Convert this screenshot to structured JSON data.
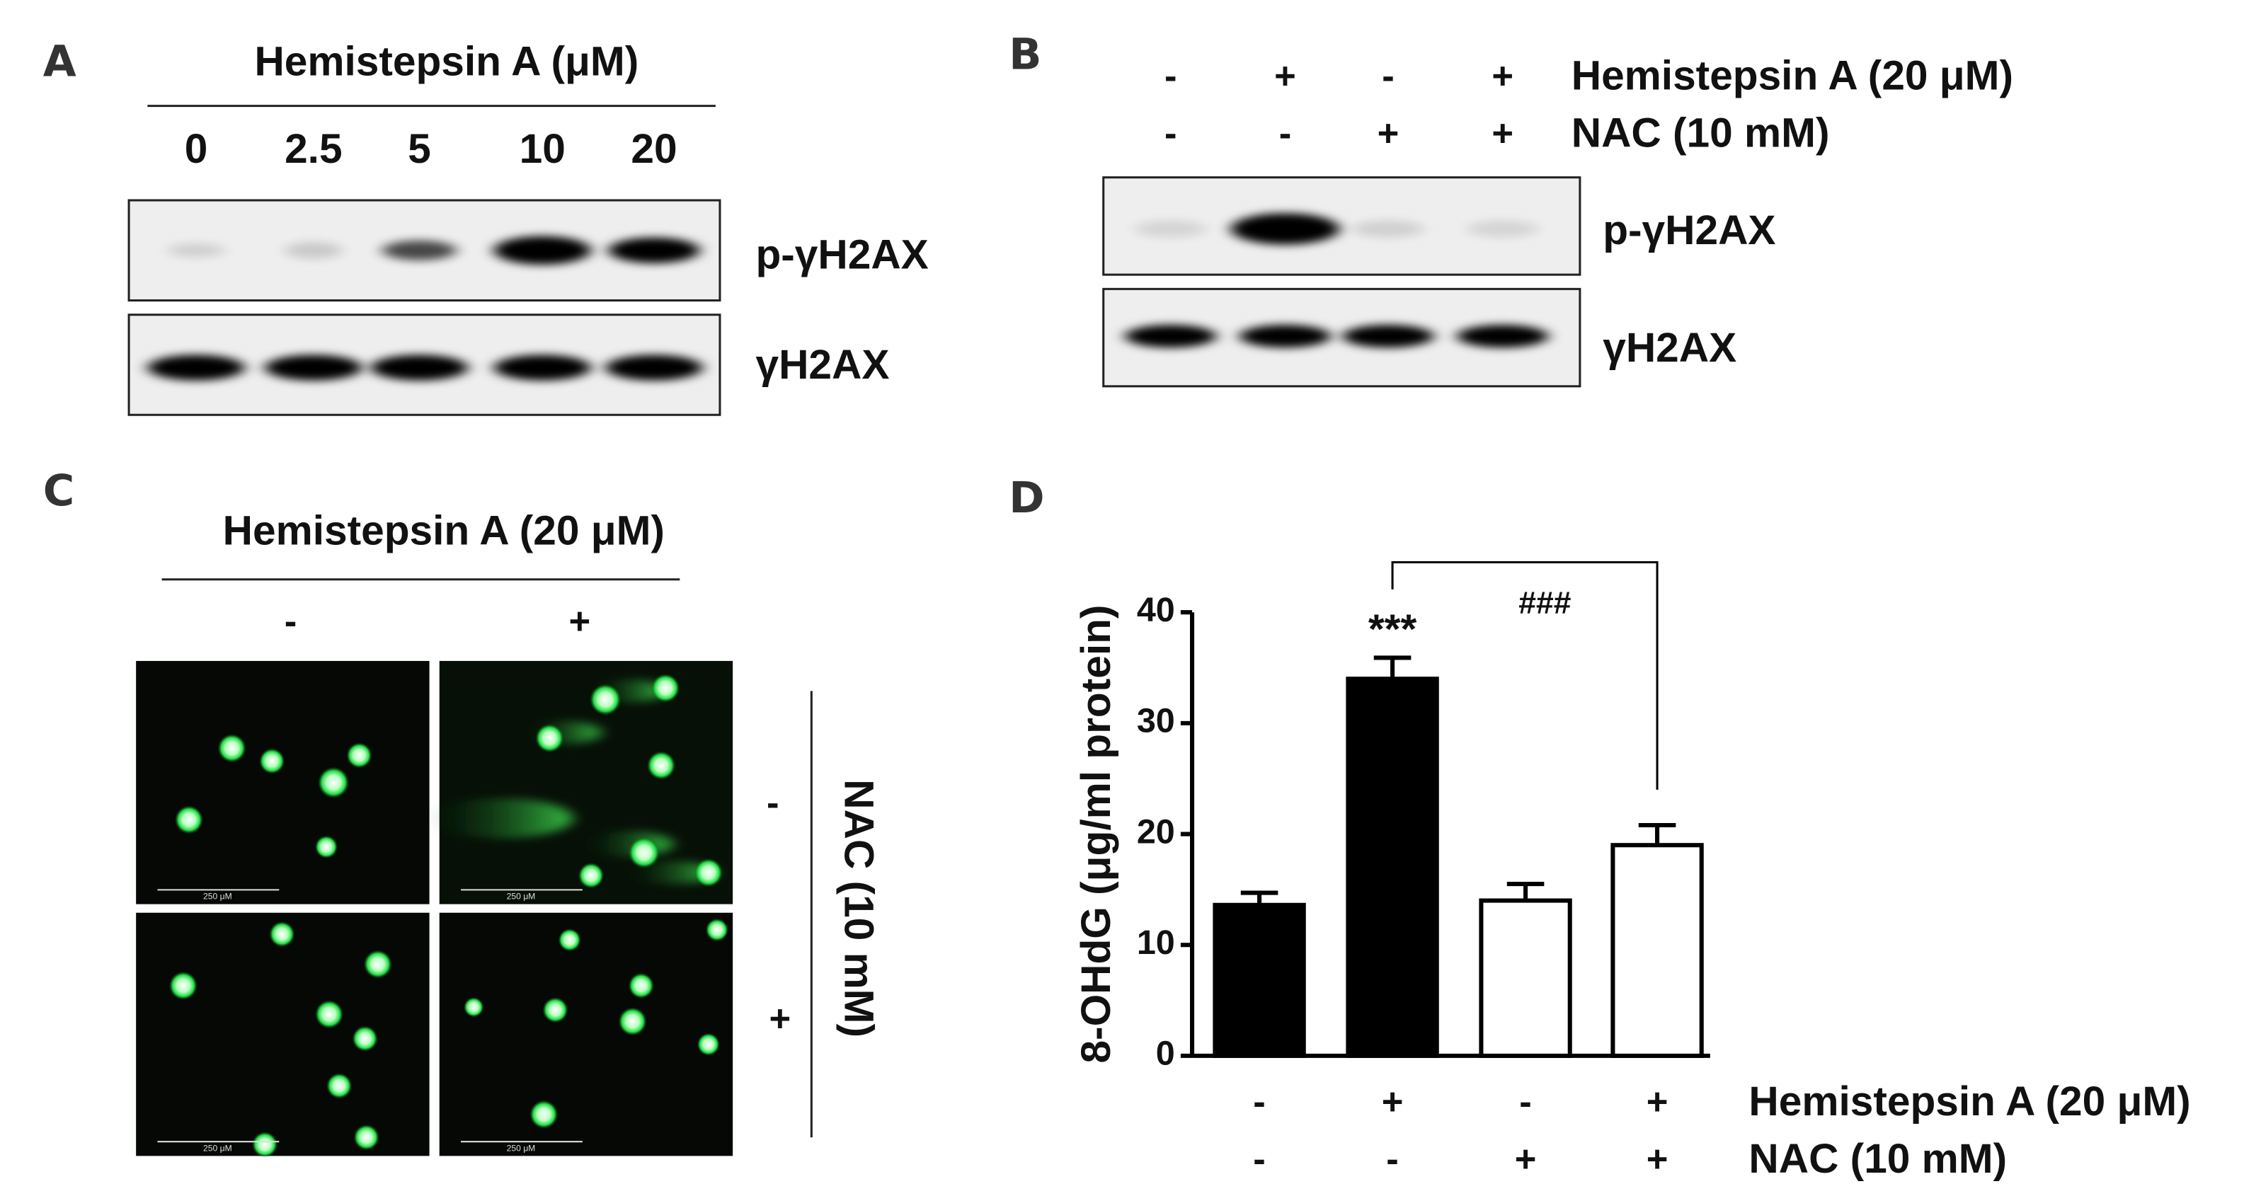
{
  "panel_a": {
    "label": "A",
    "header": "Hemistepsin A (μM)",
    "lanes": [
      "0",
      "2.5",
      "5",
      "10",
      "20"
    ],
    "blots": [
      "p-γH2AX",
      "γH2AX"
    ]
  },
  "panel_b": {
    "label": "B",
    "conditions": [
      {
        "label": "Hemistepsin A (20 μM)",
        "signs": [
          "-",
          "+",
          "-",
          "+"
        ]
      },
      {
        "label": "NAC (10 mM)",
        "signs": [
          "-",
          "-",
          "+",
          "+"
        ]
      }
    ],
    "blots": [
      "p-γH2AX",
      "γH2AX"
    ]
  },
  "panel_c": {
    "label": "C",
    "header": "Hemistepsin A (20 μM)",
    "column_signs": [
      "-",
      "+"
    ],
    "side_label": "NAC (10 mM)",
    "row_signs": [
      "-",
      "+"
    ],
    "scale_bar": "250 μM"
  },
  "panel_d": {
    "label": "D",
    "chart_data": {
      "type": "bar",
      "y_label": "8-OHdG (μg/ml protein)",
      "ylim": [
        0,
        40
      ],
      "yticks": [
        0,
        10,
        20,
        30,
        40
      ],
      "series": [
        {
          "values": [
            13.6,
            34,
            14,
            19
          ],
          "errors": [
            1.1,
            1.9,
            1.5,
            1.8
          ],
          "colors": [
            "#000000",
            "#000000",
            "#ffffff",
            "#ffffff"
          ]
        }
      ],
      "conditions": [
        {
          "label": "Hemistepsin A (20 μM)",
          "signs": [
            "-",
            "+",
            "-",
            "+"
          ]
        },
        {
          "label": "NAC (10 mM)",
          "signs": [
            "-",
            "-",
            "+",
            "+"
          ]
        }
      ],
      "annotations": [
        "***",
        "###"
      ]
    }
  }
}
